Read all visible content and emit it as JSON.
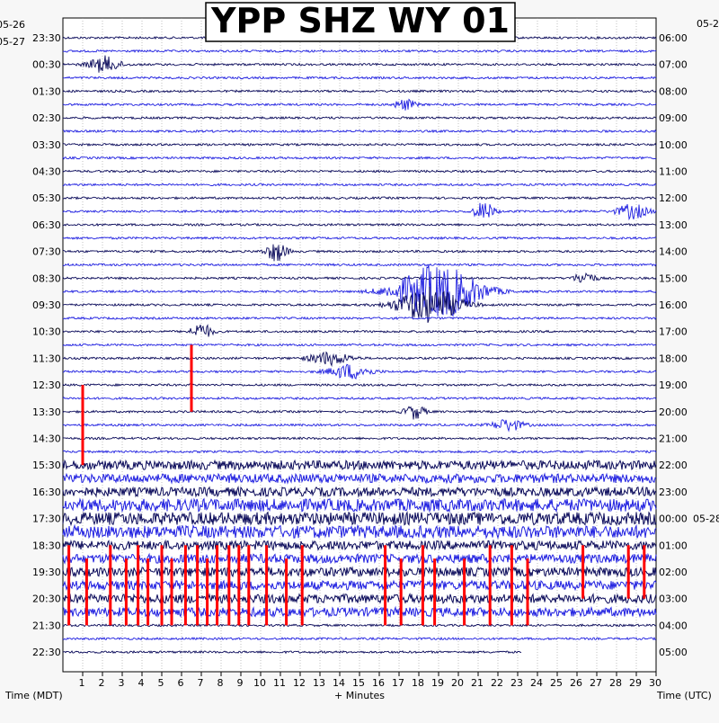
{
  "chart_data": {
    "type": "line",
    "subtype": "helicorder",
    "title": "YPP SHZ WY 01",
    "xlabel": "+ Minutes",
    "left_axis_label": "Time (MDT)",
    "right_axis_label": "Time (UTC)",
    "x_ticks": [
      1,
      2,
      3,
      4,
      5,
      6,
      7,
      8,
      9,
      10,
      11,
      12,
      13,
      14,
      15,
      16,
      17,
      18,
      19,
      20,
      21,
      22,
      23,
      24,
      25,
      26,
      27,
      28,
      29,
      30
    ],
    "xlim": [
      0,
      30
    ],
    "left_date_labels": [
      {
        "row": 0,
        "text": "05-26"
      },
      {
        "row": 1,
        "text": "05-27"
      }
    ],
    "right_date_labels": [
      {
        "row": 0,
        "text": "05-27"
      },
      {
        "row": 37,
        "text": "05-28"
      }
    ],
    "left_time_labels": [
      "23:30",
      "00:30",
      "01:30",
      "02:30",
      "03:30",
      "04:30",
      "05:30",
      "06:30",
      "07:30",
      "08:30",
      "09:30",
      "10:30",
      "11:30",
      "12:30",
      "13:30",
      "14:30",
      "15:30",
      "16:30",
      "17:30",
      "18:30",
      "19:30",
      "20:30",
      "21:30",
      "22:30"
    ],
    "right_time_labels": [
      "06:00",
      "07:00",
      "08:00",
      "09:00",
      "10:00",
      "11:00",
      "12:00",
      "13:00",
      "14:00",
      "15:00",
      "16:00",
      "17:00",
      "18:00",
      "19:00",
      "20:00",
      "21:00",
      "22:00",
      "23:00",
      "00:00",
      "01:00",
      "02:00",
      "03:00",
      "04:00",
      "05:00"
    ],
    "rows": 47,
    "trace_colors": [
      "#0a0a5a",
      "#1f1fe0"
    ],
    "clip_color": "#ff0000",
    "events": [
      {
        "row": 2,
        "minute": 2.1,
        "amp": 1.8,
        "dur": 3
      },
      {
        "row": 5,
        "minute": 17.3,
        "amp": 1.2,
        "dur": 2
      },
      {
        "row": 13,
        "minute": 21.3,
        "amp": 2.0,
        "dur": 2
      },
      {
        "row": 13,
        "minute": 28.8,
        "amp": 1.6,
        "dur": 3
      },
      {
        "row": 16,
        "minute": 10.8,
        "amp": 2.2,
        "dur": 2
      },
      {
        "row": 18,
        "minute": 26.4,
        "amp": 1.4,
        "dur": 2
      },
      {
        "row": 19,
        "minute": 19.0,
        "amp": 6.0,
        "dur": 8
      },
      {
        "row": 20,
        "minute": 18.5,
        "amp": 4.0,
        "dur": 6
      },
      {
        "row": 22,
        "minute": 7.0,
        "amp": 1.8,
        "dur": 2
      },
      {
        "row": 24,
        "minute": 13.5,
        "amp": 1.4,
        "dur": 4
      },
      {
        "row": 25,
        "minute": 14.5,
        "amp": 1.6,
        "dur": 4
      },
      {
        "row": 28,
        "minute": 17.8,
        "amp": 1.6,
        "dur": 2
      },
      {
        "row": 29,
        "minute": 22.5,
        "amp": 1.3,
        "dur": 3
      }
    ],
    "clipped_spikes": [
      {
        "minute": 1.0,
        "from_row": 26,
        "to_row": 32
      },
      {
        "minute": 6.5,
        "from_row": 23,
        "to_row": 28
      },
      {
        "minute": 0.3,
        "from_row": 38,
        "to_row": 44
      },
      {
        "minute": 1.2,
        "from_row": 39,
        "to_row": 44
      },
      {
        "minute": 2.4,
        "from_row": 38,
        "to_row": 44
      },
      {
        "minute": 3.2,
        "from_row": 39,
        "to_row": 44
      },
      {
        "minute": 3.8,
        "from_row": 38,
        "to_row": 44
      },
      {
        "minute": 4.3,
        "from_row": 39,
        "to_row": 44
      },
      {
        "minute": 5.0,
        "from_row": 38,
        "to_row": 44
      },
      {
        "minute": 5.5,
        "from_row": 39,
        "to_row": 44
      },
      {
        "minute": 6.2,
        "from_row": 38,
        "to_row": 44
      },
      {
        "minute": 6.8,
        "from_row": 38,
        "to_row": 44
      },
      {
        "minute": 7.3,
        "from_row": 39,
        "to_row": 44
      },
      {
        "minute": 7.8,
        "from_row": 38,
        "to_row": 44
      },
      {
        "minute": 8.4,
        "from_row": 38,
        "to_row": 44
      },
      {
        "minute": 8.9,
        "from_row": 38,
        "to_row": 44
      },
      {
        "minute": 9.4,
        "from_row": 38,
        "to_row": 44
      },
      {
        "minute": 10.3,
        "from_row": 38,
        "to_row": 44
      },
      {
        "minute": 11.3,
        "from_row": 39,
        "to_row": 44
      },
      {
        "minute": 12.1,
        "from_row": 38,
        "to_row": 44
      },
      {
        "minute": 16.3,
        "from_row": 38,
        "to_row": 44
      },
      {
        "minute": 17.1,
        "from_row": 39,
        "to_row": 44
      },
      {
        "minute": 18.2,
        "from_row": 38,
        "to_row": 44
      },
      {
        "minute": 18.8,
        "from_row": 39,
        "to_row": 44
      },
      {
        "minute": 20.3,
        "from_row": 39,
        "to_row": 44
      },
      {
        "minute": 21.6,
        "from_row": 38,
        "to_row": 44
      },
      {
        "minute": 22.7,
        "from_row": 38,
        "to_row": 44
      },
      {
        "minute": 23.5,
        "from_row": 39,
        "to_row": 44
      },
      {
        "minute": 26.3,
        "from_row": 38,
        "to_row": 42
      },
      {
        "minute": 28.6,
        "from_row": 38,
        "to_row": 42
      },
      {
        "minute": 29.4,
        "from_row": 38,
        "to_row": 42
      }
    ],
    "noisy_rows": [
      32,
      33,
      34,
      35,
      36,
      37,
      38,
      39,
      40,
      41,
      42,
      43
    ],
    "last_row_end_minute": 23.2
  }
}
